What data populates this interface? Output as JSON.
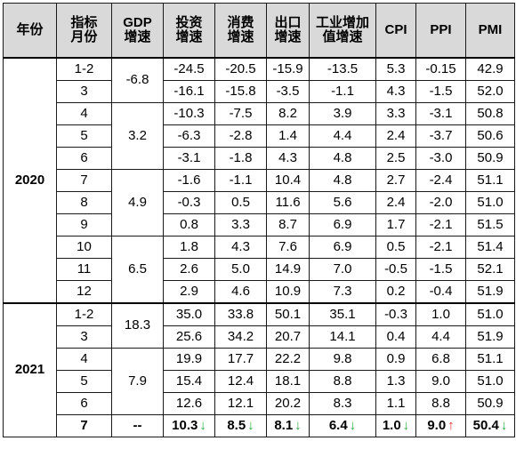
{
  "headers": {
    "year": "年份",
    "indicator": [
      "指标",
      "月份"
    ],
    "gdp": [
      "GDP",
      "增速"
    ],
    "invest": [
      "投资",
      "增速"
    ],
    "consume": [
      "消费",
      "增速"
    ],
    "export": [
      "出口",
      "增速"
    ],
    "industry": [
      "工业增加",
      "值增速"
    ],
    "cpi": "CPI",
    "ppi": "PPI",
    "pmi": "PMI"
  },
  "years": [
    "2020",
    "2021"
  ],
  "gdp_groups": [
    "-6.8",
    "3.2",
    "4.9",
    "6.5",
    "18.3",
    "7.9",
    "--"
  ],
  "rows": [
    {
      "month": "1-2",
      "invest": "-24.5",
      "consume": "-20.5",
      "export": "-15.9",
      "industry": "-13.5",
      "cpi": "5.3",
      "ppi": "-0.15",
      "pmi": "42.9"
    },
    {
      "month": "3",
      "invest": "-16.1",
      "consume": "-15.8",
      "export": "-3.5",
      "industry": "-1.1",
      "cpi": "4.3",
      "ppi": "-1.5",
      "pmi": "52.0"
    },
    {
      "month": "4",
      "invest": "-10.3",
      "consume": "-7.5",
      "export": "8.2",
      "industry": "3.9",
      "cpi": "3.3",
      "ppi": "-3.1",
      "pmi": "50.8"
    },
    {
      "month": "5",
      "invest": "-6.3",
      "consume": "-2.8",
      "export": "1.4",
      "industry": "4.4",
      "cpi": "2.4",
      "ppi": "-3.7",
      "pmi": "50.6"
    },
    {
      "month": "6",
      "invest": "-3.1",
      "consume": "-1.8",
      "export": "4.3",
      "industry": "4.8",
      "cpi": "2.5",
      "ppi": "-3.0",
      "pmi": "50.9"
    },
    {
      "month": "7",
      "invest": "-1.6",
      "consume": "-1.1",
      "export": "10.4",
      "industry": "4.8",
      "cpi": "2.7",
      "ppi": "-2.4",
      "pmi": "51.1"
    },
    {
      "month": "8",
      "invest": "-0.3",
      "consume": "0.5",
      "export": "11.6",
      "industry": "5.6",
      "cpi": "2.4",
      "ppi": "-2.0",
      "pmi": "51.0"
    },
    {
      "month": "9",
      "invest": "0.8",
      "consume": "3.3",
      "export": "8.7",
      "industry": "6.9",
      "cpi": "1.7",
      "ppi": "-2.1",
      "pmi": "51.5"
    },
    {
      "month": "10",
      "invest": "1.8",
      "consume": "4.3",
      "export": "7.6",
      "industry": "6.9",
      "cpi": "0.5",
      "ppi": "-2.1",
      "pmi": "51.4"
    },
    {
      "month": "11",
      "invest": "2.6",
      "consume": "5.0",
      "export": "14.9",
      "industry": "7.0",
      "cpi": "-0.5",
      "ppi": "-1.5",
      "pmi": "52.1"
    },
    {
      "month": "12",
      "invest": "2.9",
      "consume": "4.6",
      "export": "10.9",
      "industry": "7.3",
      "cpi": "0.2",
      "ppi": "-0.4",
      "pmi": "51.9"
    },
    {
      "month": "1-2",
      "invest": "35.0",
      "consume": "33.8",
      "export": "50.1",
      "industry": "35.1",
      "cpi": "-0.3",
      "ppi": "1.0",
      "pmi": "51.0"
    },
    {
      "month": "3",
      "invest": "25.6",
      "consume": "34.2",
      "export": "20.7",
      "industry": "14.1",
      "cpi": "0.4",
      "ppi": "4.4",
      "pmi": "51.9"
    },
    {
      "month": "4",
      "invest": "19.9",
      "consume": "17.7",
      "export": "22.2",
      "industry": "9.8",
      "cpi": "0.9",
      "ppi": "6.8",
      "pmi": "51.1"
    },
    {
      "month": "5",
      "invest": "15.4",
      "consume": "12.4",
      "export": "18.1",
      "industry": "8.8",
      "cpi": "1.3",
      "ppi": "9.0",
      "pmi": "51.0"
    },
    {
      "month": "6",
      "invest": "12.6",
      "consume": "12.1",
      "export": "20.2",
      "industry": "8.3",
      "cpi": "1.1",
      "ppi": "8.8",
      "pmi": "50.9"
    },
    {
      "month": "7",
      "invest": "10.3",
      "consume": "8.5",
      "export": "8.1",
      "industry": "6.4",
      "cpi": "1.0",
      "ppi": "9.0",
      "pmi": "50.4"
    }
  ],
  "last_row_trend": {
    "invest": "down",
    "consume": "down",
    "export": "down",
    "industry": "down",
    "cpi": "down",
    "ppi": "up",
    "pmi": "down"
  },
  "colors": {
    "header_bg": "#d9d9d9",
    "down_arrow": "#2aa93c",
    "up_arrow": "#e03030"
  },
  "arrow_glyphs": {
    "down": "↓",
    "up": "↑"
  }
}
